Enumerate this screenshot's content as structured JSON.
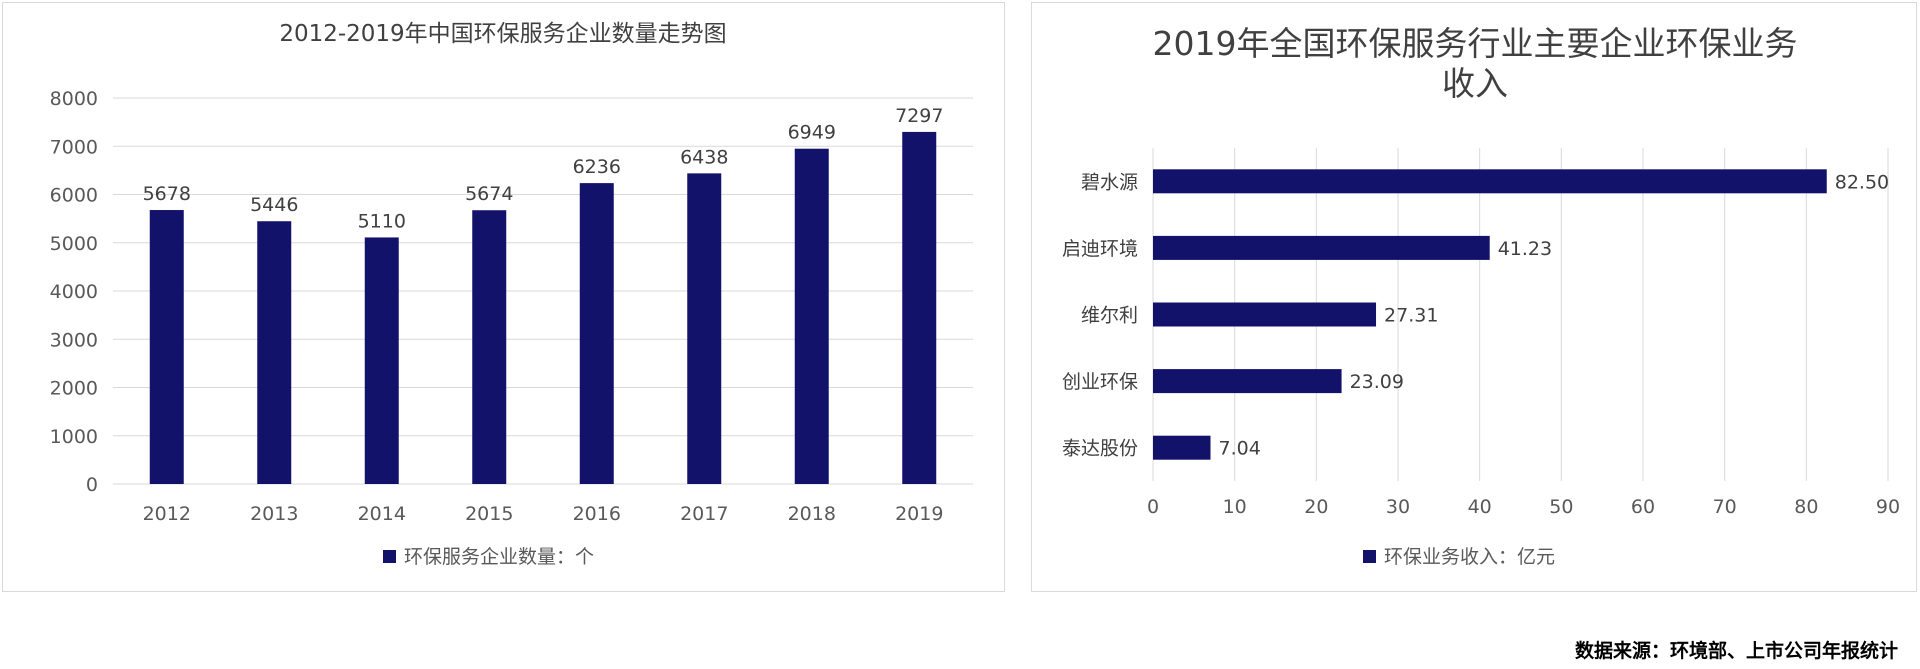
{
  "chart_data": [
    {
      "type": "bar",
      "title": "2012-2019年中国环保服务企业数量走势图",
      "categories": [
        "2012",
        "2013",
        "2014",
        "2015",
        "2016",
        "2017",
        "2018",
        "2019"
      ],
      "series": [
        {
          "name": "环保服务企业数量：个",
          "values": [
            5678,
            5446,
            5110,
            5674,
            6236,
            6438,
            6949,
            7297
          ]
        }
      ],
      "data_labels": [
        "5678",
        "5446",
        "5110",
        "5674",
        "6236",
        "6438",
        "6949",
        "7297"
      ],
      "ylim": [
        0,
        8000
      ],
      "yticks": [
        "0",
        "1000",
        "2000",
        "3000",
        "4000",
        "5000",
        "6000",
        "7000",
        "8000"
      ],
      "grid": true,
      "legend": "bottom",
      "color": "#13126a"
    },
    {
      "type": "bar",
      "orientation": "horizontal",
      "title_lines": [
        "2019年全国环保服务行业主要企业环保业务",
        "收入"
      ],
      "categories": [
        "碧水源",
        "启迪环境",
        "维尔利",
        "创业环保",
        "泰达股份"
      ],
      "series": [
        {
          "name": "环保业务收入：亿元",
          "values": [
            82.5,
            41.23,
            27.31,
            23.09,
            7.04
          ]
        }
      ],
      "data_labels": [
        "82.50",
        "41.23",
        "27.31",
        "23.09",
        "7.04"
      ],
      "xlim": [
        0,
        90
      ],
      "xticks": [
        "0",
        "10",
        "20",
        "30",
        "40",
        "50",
        "60",
        "70",
        "80",
        "90"
      ],
      "grid": true,
      "legend": "bottom",
      "color": "#13126a"
    }
  ],
  "source_note": "数据来源：环境部、上市公司年报统计"
}
